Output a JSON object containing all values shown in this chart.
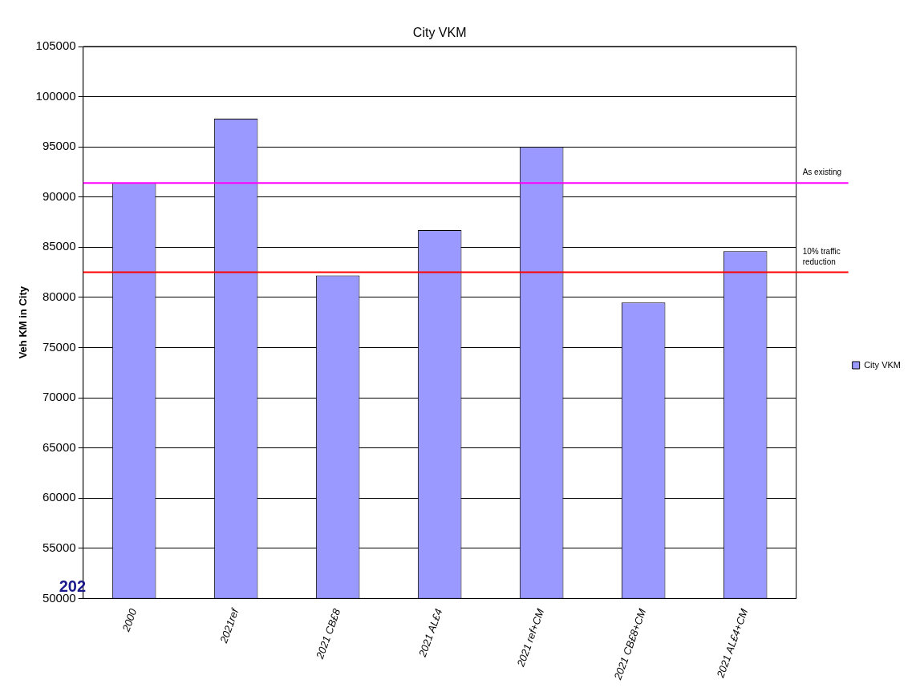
{
  "chart_data": {
    "type": "bar",
    "title": "City VKM",
    "ylabel": "Veh KM in City",
    "categories": [
      "2000",
      "2021ref",
      "2021 CB£8",
      "2021 AL£4",
      "2021 ref+CM",
      "2021 CB£8+CM",
      "2021 AL£4+CM"
    ],
    "series": [
      {
        "name": "City VKM",
        "color": "#9999ff",
        "values": [
          91400,
          97800,
          82200,
          86700,
          95000,
          79500,
          84600
        ]
      }
    ],
    "ylim": [
      50000,
      105000
    ],
    "yticks": [
      50000,
      55000,
      60000,
      65000,
      70000,
      75000,
      80000,
      85000,
      90000,
      95000,
      100000,
      105000
    ],
    "grid": "y",
    "legend": "right",
    "ref_lines": [
      {
        "axis": "y",
        "value": 91400,
        "label": "As existing",
        "color": "#ff00ff"
      },
      {
        "axis": "y",
        "value": 82500,
        "label": "10% traffic reduction",
        "color": "#ff0000"
      }
    ],
    "annotations": [
      "202"
    ]
  }
}
